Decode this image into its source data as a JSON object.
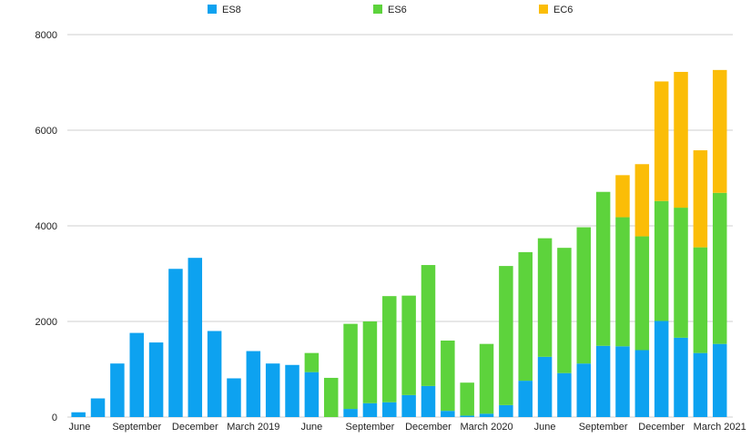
{
  "chart_data": {
    "type": "bar",
    "stacked": true,
    "ylim": [
      0,
      8000
    ],
    "yticks": [
      0,
      2000,
      4000,
      6000,
      8000
    ],
    "grid": true,
    "legend_position": "top",
    "categories": [
      "2018-06",
      "2018-07",
      "2018-08",
      "2018-09",
      "2018-10",
      "2018-11",
      "2018-12",
      "2019-01",
      "2019-02",
      "2019-03",
      "2019-04",
      "2019-05",
      "2019-06",
      "2019-07",
      "2019-08",
      "2019-09",
      "2019-10",
      "2019-11",
      "2019-12",
      "2020-01",
      "2020-02",
      "2020-03",
      "2020-04",
      "2020-05",
      "2020-06",
      "2020-07",
      "2020-08",
      "2020-09",
      "2020-10",
      "2020-11",
      "2020-12",
      "2021-01",
      "2021-02",
      "2021-03"
    ],
    "xtick_labels": [
      {
        "index": 0,
        "label": "June"
      },
      {
        "index": 3,
        "label": "September"
      },
      {
        "index": 6,
        "label": "December"
      },
      {
        "index": 9,
        "label": "March 2019"
      },
      {
        "index": 12,
        "label": "June"
      },
      {
        "index": 15,
        "label": "September"
      },
      {
        "index": 18,
        "label": "December"
      },
      {
        "index": 21,
        "label": "March 2020"
      },
      {
        "index": 24,
        "label": "June"
      },
      {
        "index": 27,
        "label": "September"
      },
      {
        "index": 30,
        "label": "December"
      },
      {
        "index": 33,
        "label": "March 2021"
      }
    ],
    "series": [
      {
        "name": "ES8",
        "color": "#0da2f0",
        "values": [
          100,
          390,
          1120,
          1760,
          1560,
          3100,
          3330,
          1800,
          810,
          1380,
          1120,
          1090,
          940,
          0,
          170,
          290,
          310,
          460,
          650,
          130,
          30,
          70,
          250,
          760,
          1260,
          920,
          1120,
          1490,
          1480,
          1400,
          2010,
          1660,
          1340,
          1530
        ]
      },
      {
        "name": "ES6",
        "color": "#5dd33c",
        "values": [
          0,
          0,
          0,
          0,
          0,
          0,
          0,
          0,
          0,
          0,
          0,
          0,
          400,
          820,
          1780,
          1710,
          2220,
          2080,
          2530,
          1470,
          690,
          1460,
          2910,
          2690,
          2480,
          2620,
          2850,
          3220,
          2700,
          2380,
          2510,
          2720,
          2210,
          3160
        ]
      },
      {
        "name": "EC6",
        "color": "#fbbd07",
        "values": [
          0,
          0,
          0,
          0,
          0,
          0,
          0,
          0,
          0,
          0,
          0,
          0,
          0,
          0,
          0,
          0,
          0,
          0,
          0,
          0,
          0,
          0,
          0,
          0,
          0,
          0,
          0,
          0,
          880,
          1510,
          2500,
          2840,
          2030,
          2570
        ]
      }
    ]
  }
}
